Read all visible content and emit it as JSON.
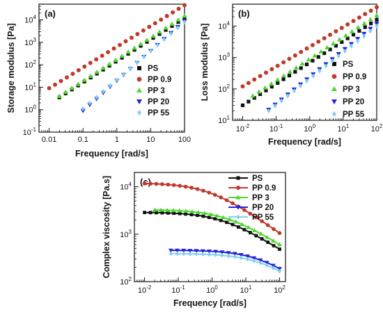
{
  "chart_data": [
    {
      "type": "scatter",
      "panel_label": "(a)",
      "xlabel": "Frequency [rad/s]",
      "ylabel": "Storage modulus [Pa]",
      "xscale": "log",
      "yscale": "log",
      "xlim": [
        0.005,
        100
      ],
      "ylim": [
        0.1,
        50000
      ],
      "xticks": [
        {
          "v": 0.01,
          "label": "0.01"
        },
        {
          "v": 0.1,
          "label": "0.1"
        },
        {
          "v": 1,
          "label": "1"
        },
        {
          "v": 10,
          "label": "10"
        },
        {
          "v": 100,
          "label": "100"
        }
      ],
      "yticks": [
        {
          "v": 0.1,
          "base": "10",
          "exp": "-1"
        },
        {
          "v": 1,
          "base": "10",
          "exp": "0"
        },
        {
          "v": 10,
          "base": "10",
          "exp": "1"
        },
        {
          "v": 100,
          "base": "10",
          "exp": "2"
        },
        {
          "v": 1000,
          "base": "10",
          "exp": "3"
        },
        {
          "v": 10000,
          "base": "10",
          "exp": "4"
        }
      ],
      "grid": false,
      "legend_position": "right",
      "series": [
        {
          "name": "PS",
          "marker": "square",
          "color": "#111111",
          "x_start": 0.02,
          "x_end": 100,
          "n": 21,
          "y_start": 3.5,
          "y_end": 12000
        },
        {
          "name": "PP 0.9",
          "marker": "circle",
          "color": "#c0392b",
          "x_start": 0.01,
          "x_end": 100,
          "n": 24,
          "y_start": 9,
          "y_end": 45000
        },
        {
          "name": "PP 3",
          "marker": "triangle-up",
          "color": "#4bd82d",
          "x_start": 0.02,
          "x_end": 100,
          "n": 21,
          "y_start": 4,
          "y_end": 15000
        },
        {
          "name": "PP 20",
          "marker": "triangle-down",
          "color": "#2323d8",
          "x_start": 0.1,
          "x_end": 100,
          "n": 16,
          "y_start": 0.9,
          "y_end": 9000
        },
        {
          "name": "PP 55",
          "marker": "diamond",
          "color": "#7fd0f0",
          "x_start": 0.1,
          "x_end": 100,
          "n": 16,
          "y_start": 1.1,
          "y_end": 8000
        }
      ]
    },
    {
      "type": "scatter",
      "panel_label": "(b)",
      "xlabel": "Frequency [rad/s]",
      "ylabel": "Loss modulus [Pa]",
      "xscale": "log",
      "yscale": "log",
      "xlim": [
        0.005,
        100
      ],
      "ylim": [
        10,
        50000
      ],
      "xticks": [
        {
          "v": 0.01,
          "base": "10",
          "exp": "-2"
        },
        {
          "v": 0.1,
          "base": "10",
          "exp": "-1"
        },
        {
          "v": 1,
          "base": "10",
          "exp": "0"
        },
        {
          "v": 10,
          "base": "10",
          "exp": "1"
        },
        {
          "v": 100,
          "base": "10",
          "exp": "2"
        }
      ],
      "yticks": [
        {
          "v": 10,
          "base": "10",
          "exp": "1"
        },
        {
          "v": 100,
          "base": "10",
          "exp": "2"
        },
        {
          "v": 1000,
          "base": "10",
          "exp": "3"
        },
        {
          "v": 10000,
          "base": "10",
          "exp": "4"
        }
      ],
      "grid": false,
      "legend_position": "right",
      "series": [
        {
          "name": "PS",
          "marker": "square",
          "color": "#111111",
          "x_start": 0.01,
          "x_end": 100,
          "n": 24,
          "y_start": 30,
          "y_end": 16000
        },
        {
          "name": "PP 0.9",
          "marker": "circle",
          "color": "#c0392b",
          "x_start": 0.01,
          "x_end": 100,
          "n": 24,
          "y_start": 120,
          "y_end": 40000
        },
        {
          "name": "PP 3",
          "marker": "triangle-up",
          "color": "#4bd82d",
          "x_start": 0.02,
          "x_end": 100,
          "n": 21,
          "y_start": 60,
          "y_end": 22000
        },
        {
          "name": "PP 20",
          "marker": "triangle-down",
          "color": "#2323d8",
          "x_start": 0.06,
          "x_end": 100,
          "n": 18,
          "y_start": 22,
          "y_end": 12000
        },
        {
          "name": "PP 55",
          "marker": "diamond",
          "color": "#7fd0f0",
          "x_start": 0.06,
          "x_end": 100,
          "n": 18,
          "y_start": 20,
          "y_end": 10000
        }
      ]
    },
    {
      "type": "line",
      "panel_label": "(c)",
      "xlabel": "Frequency [rad/s]",
      "ylabel": "Complex viscosity [Pa.s]",
      "xscale": "log",
      "yscale": "log",
      "xlim": [
        0.005,
        150
      ],
      "ylim": [
        100,
        20000
      ],
      "xticks": [
        {
          "v": 0.01,
          "base": "10",
          "exp": "-2"
        },
        {
          "v": 0.1,
          "base": "10",
          "exp": "-1"
        },
        {
          "v": 1,
          "base": "10",
          "exp": "0"
        },
        {
          "v": 10,
          "base": "10",
          "exp": "1"
        },
        {
          "v": 100,
          "base": "10",
          "exp": "2"
        }
      ],
      "yticks": [
        {
          "v": 100,
          "base": "10",
          "exp": "2"
        },
        {
          "v": 1000,
          "base": "10",
          "exp": "3"
        },
        {
          "v": 10000,
          "base": "10",
          "exp": "4"
        }
      ],
      "grid": false,
      "legend_position": "top-right",
      "series": [
        {
          "name": "PS",
          "marker": "square",
          "color": "#111111",
          "x_start": 0.01,
          "x_end": 100,
          "n": 24,
          "eta0": 2900,
          "wc": 2.0,
          "slope": 0.45
        },
        {
          "name": "PP 0.9",
          "marker": "circle",
          "color": "#c0392b",
          "x_start": 0.01,
          "x_end": 100,
          "n": 24,
          "eta0": 12000,
          "wc": 0.8,
          "slope": 0.5
        },
        {
          "name": "PP 3",
          "marker": "triangle-up",
          "color": "#4bd82d",
          "x_start": 0.02,
          "x_end": 100,
          "n": 21,
          "eta0": 3300,
          "wc": 2.5,
          "slope": 0.45
        },
        {
          "name": "PP 20",
          "marker": "triangle-down",
          "color": "#2323d8",
          "x_start": 0.06,
          "x_end": 100,
          "n": 18,
          "eta0": 460,
          "wc": 25,
          "slope": 0.5
        },
        {
          "name": "PP 55",
          "marker": "diamond",
          "color": "#7fd0f0",
          "x_start": 0.06,
          "x_end": 100,
          "n": 18,
          "eta0": 390,
          "wc": 28,
          "slope": 0.5
        }
      ]
    }
  ]
}
